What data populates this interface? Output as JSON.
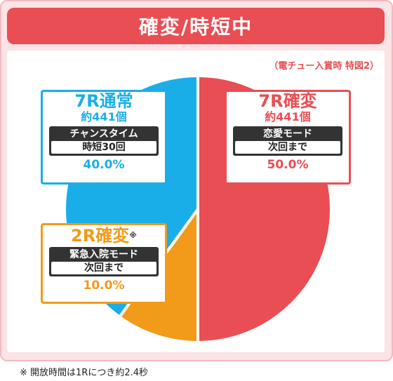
{
  "header": {
    "title": "確変/時短中"
  },
  "source_note": "（電チュー入賞時 特図2）",
  "chart_data": {
    "type": "pie",
    "slices": [
      {
        "key": "red",
        "name": "7R確変",
        "count": "約441個",
        "mode_title": "恋愛モード",
        "mode_sub": "次回まで",
        "value": 50.0,
        "label": "50.0%",
        "color": "#e84e53"
      },
      {
        "key": "orange",
        "name": "2R確変",
        "mark": "※",
        "mode_title": "緊急入院モード",
        "mode_sub": "次回まで",
        "value": 10.0,
        "label": "10.0%",
        "color": "#f29a1a"
      },
      {
        "key": "blue",
        "name": "7R通常",
        "count": "約441個",
        "mode_title": "チャンスタイム",
        "mode_sub": "時短30回",
        "value": 40.0,
        "label": "40.0%",
        "color": "#1aaee8"
      }
    ]
  },
  "footnote": "※ 開放時間は1Rにつき約2.4秒"
}
